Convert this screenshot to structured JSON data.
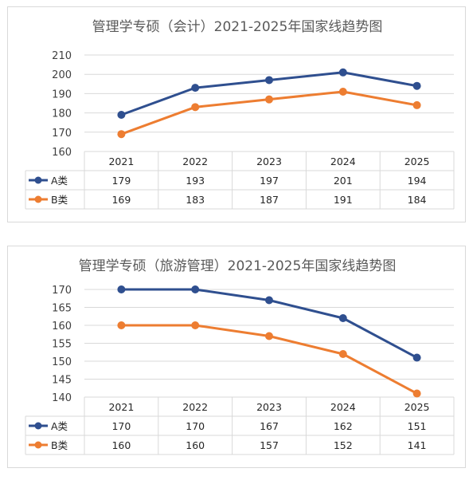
{
  "colors": {
    "A": "#2f4f8f",
    "B": "#ed7d31",
    "grid": "#d9d9d9",
    "text": "#404040"
  },
  "chart_data": [
    {
      "type": "line",
      "title": "管理学专硕（会计）2021-2025年国家线趋势图",
      "categories": [
        "2021",
        "2022",
        "2023",
        "2024",
        "2025"
      ],
      "ylim": [
        160,
        210
      ],
      "ytick_step": 10,
      "yticks": [
        "160",
        "170",
        "180",
        "190",
        "200",
        "210"
      ],
      "grid": true,
      "legend": "data-table",
      "series": [
        {
          "name": "A类",
          "values": [
            179,
            193,
            197,
            201,
            194
          ]
        },
        {
          "name": "B类",
          "values": [
            169,
            183,
            187,
            191,
            184
          ]
        }
      ]
    },
    {
      "type": "line",
      "title": "管理学专硕（旅游管理）2021-2025年国家线趋势图",
      "categories": [
        "2021",
        "2022",
        "2023",
        "2024",
        "2025"
      ],
      "ylim": [
        140,
        170
      ],
      "ytick_step": 5,
      "yticks": [
        "140",
        "145",
        "150",
        "155",
        "160",
        "165",
        "170"
      ],
      "grid": true,
      "legend": "data-table",
      "series": [
        {
          "name": "A类",
          "values": [
            170,
            170,
            167,
            162,
            151
          ]
        },
        {
          "name": "B类",
          "values": [
            160,
            160,
            157,
            152,
            141
          ]
        }
      ]
    }
  ]
}
